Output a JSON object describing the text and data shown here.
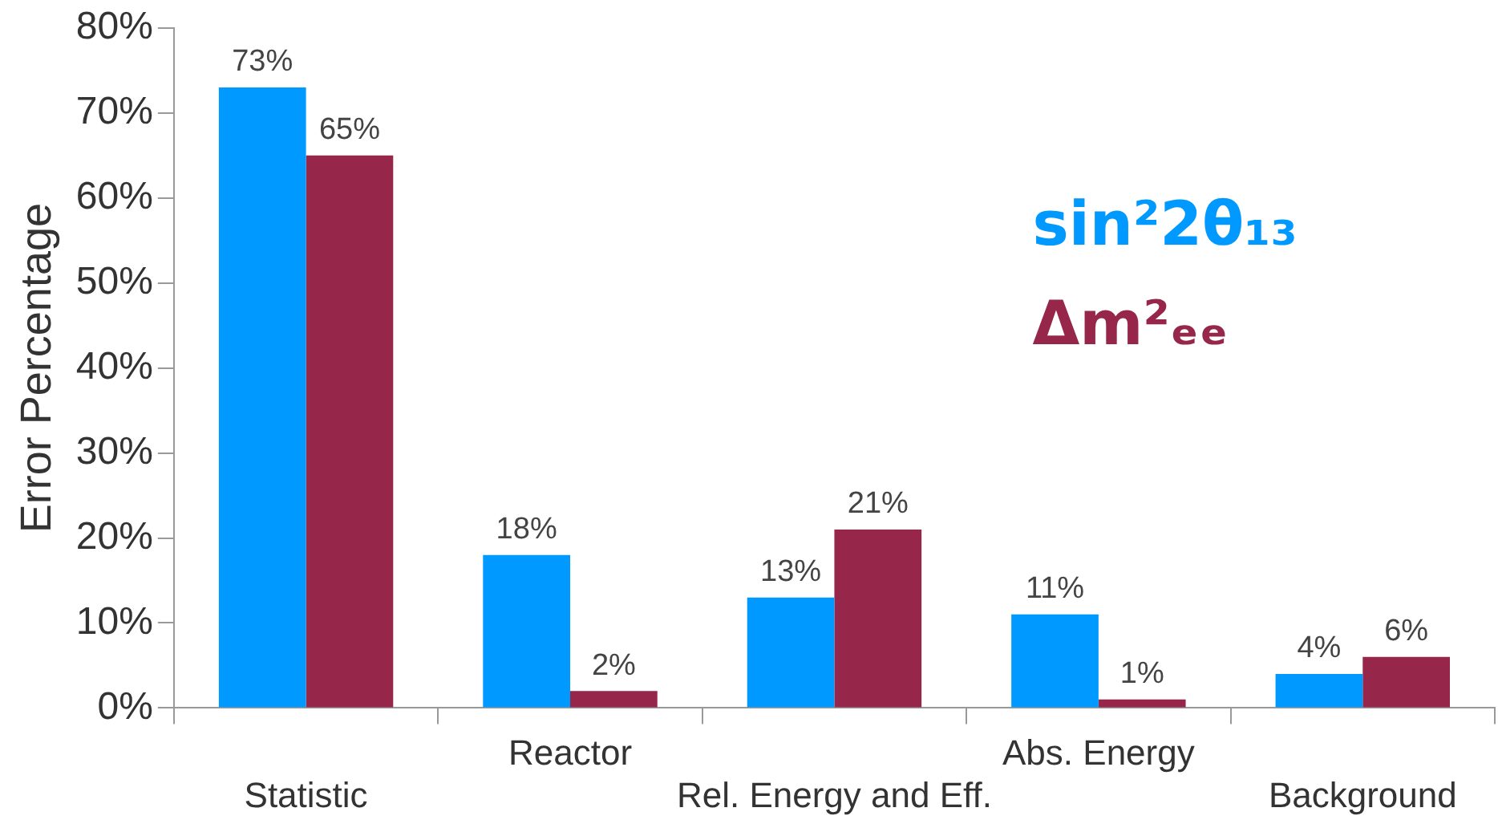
{
  "chart_data": {
    "type": "bar",
    "ylabel": "Error Percentage",
    "categories": [
      "Statistic",
      "Reactor",
      "Rel. Energy and Eff.",
      "Abs. Energy",
      "Background"
    ],
    "series": [
      {
        "name": "sin²2θ₁₃",
        "color": "#0099ff",
        "values": [
          73,
          18,
          13,
          11,
          4
        ],
        "value_labels": [
          "73%",
          "18%",
          "13%",
          "11%",
          "4%"
        ]
      },
      {
        "name": "Δm²ₑₑ",
        "color": "#97264b",
        "values": [
          65,
          2,
          21,
          1,
          6
        ],
        "value_labels": [
          "65%",
          "2%",
          "21%",
          "1%",
          "6%"
        ]
      }
    ],
    "ylim": [
      0,
      80
    ],
    "yticks": [
      {
        "value": 0,
        "label": "0%"
      },
      {
        "value": 10,
        "label": "10%"
      },
      {
        "value": 20,
        "label": "20%"
      },
      {
        "value": 30,
        "label": "30%"
      },
      {
        "value": 40,
        "label": "40%"
      },
      {
        "value": 50,
        "label": "50%"
      },
      {
        "value": 60,
        "label": "60%"
      },
      {
        "value": 70,
        "label": "70%"
      },
      {
        "value": 80,
        "label": "80%"
      }
    ],
    "grid": false,
    "legend": "right"
  }
}
